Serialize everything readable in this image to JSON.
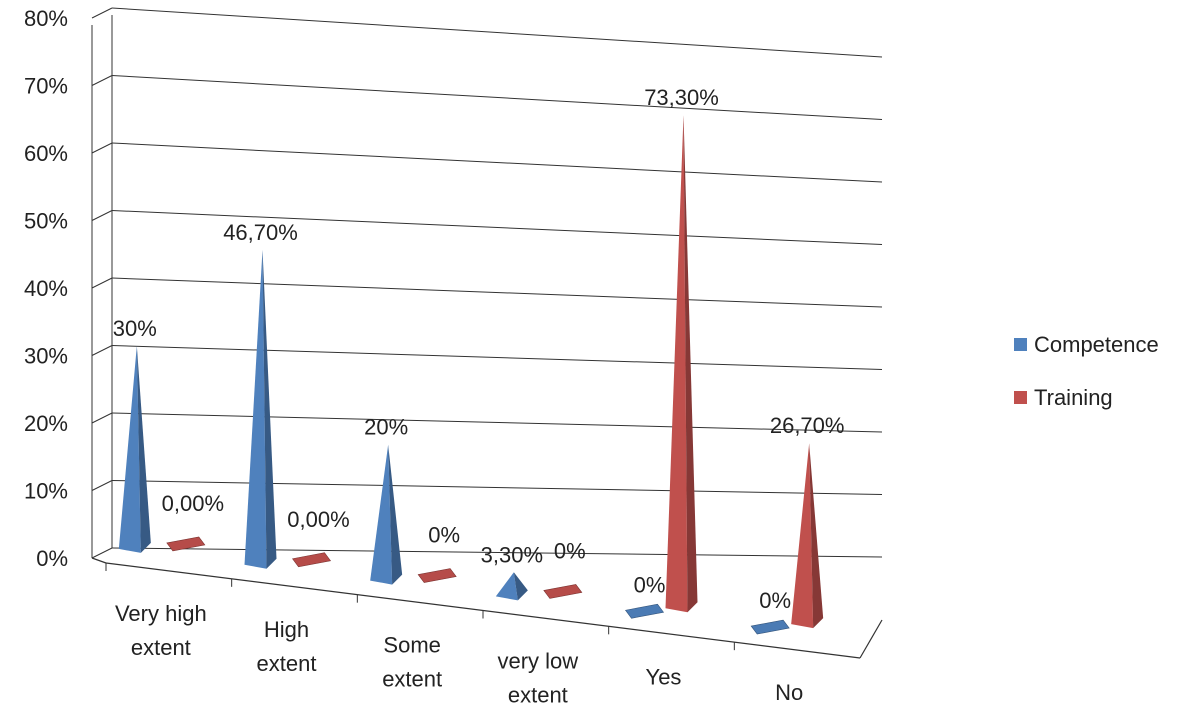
{
  "chart_data": {
    "type": "bar",
    "style": "3d-cone",
    "categories": [
      [
        "Very high",
        "extent"
      ],
      [
        "High",
        "extent"
      ],
      [
        "Some",
        "extent"
      ],
      [
        "very low",
        "extent"
      ],
      [
        "Yes"
      ],
      [
        "No"
      ]
    ],
    "series": [
      {
        "name": "Competence",
        "color": "#4F81BD",
        "values": [
          30,
          46.7,
          20,
          3.3,
          0,
          0
        ],
        "labels": [
          "30%",
          "46,70%",
          "20%",
          "3,30%",
          "0%",
          "0%"
        ]
      },
      {
        "name": "Training",
        "color": "#C0504D",
        "values": [
          0,
          0,
          0,
          0,
          73.3,
          26.7
        ],
        "labels": [
          "0,00%",
          "0,00%",
          "0%",
          "0%",
          "73,30%",
          "26,70%"
        ]
      }
    ],
    "y_ticks": [
      "0%",
      "10%",
      "20%",
      "30%",
      "40%",
      "50%",
      "60%",
      "70%",
      "80%"
    ],
    "ylim": [
      0,
      80
    ],
    "grid": true,
    "legend_position": "right"
  }
}
